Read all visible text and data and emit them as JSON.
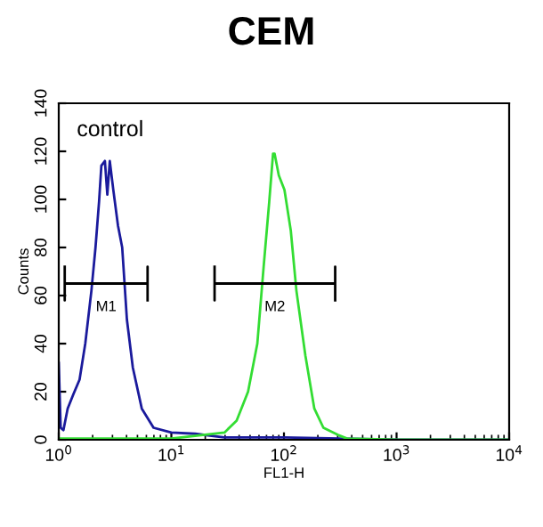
{
  "chart_data": {
    "type": "line",
    "title": "CEM",
    "xlabel": "FL1-H",
    "ylabel": "Counts",
    "log": "x",
    "grid": false,
    "marker": "none",
    "line_style": "solid",
    "xlim": [
      1,
      10000
    ],
    "xticks": [
      {
        "value": 1,
        "label": "10$^{0}$"
      },
      {
        "value": 10,
        "label": "10$^{1}$"
      },
      {
        "value": 100,
        "label": "10$^{2}$"
      },
      {
        "value": 1000,
        "label": "10$^{3}$"
      },
      {
        "value": 10000,
        "label": "10$^{4}$"
      }
    ],
    "ylim": [
      0,
      140
    ],
    "yticks": [
      0,
      20,
      40,
      60,
      80,
      100,
      120,
      140
    ],
    "series": [
      {
        "color": "#1a1a9c",
        "x": [
          1.0,
          1.04,
          1.1,
          1.2,
          1.35,
          1.53,
          1.72,
          1.95,
          2.12,
          2.28,
          2.39,
          2.57,
          2.7,
          2.84,
          3.05,
          3.36,
          3.66,
          4.03,
          4.55,
          5.46,
          6.95,
          10,
          16.3,
          29.6,
          100,
          1000,
          10000
        ],
        "values": [
          32,
          5,
          4,
          13,
          19,
          25,
          40,
          62,
          80,
          99,
          114,
          116,
          102,
          116,
          104,
          89,
          80,
          50,
          30,
          13,
          5,
          3,
          2.5,
          1,
          1,
          0,
          0
        ]
      },
      {
        "color": "#33dd33",
        "x": [
          1.0,
          10,
          29.6,
          38,
          48,
          58,
          66,
          74,
          80,
          82.6,
          90,
          101,
          115,
          129,
          155,
          186,
          224,
          302,
          363,
          1000,
          10000
        ],
        "values": [
          0.5,
          0.5,
          3,
          8,
          20,
          40,
          72,
          99,
          119,
          119,
          110,
          104,
          87,
          62,
          35,
          13,
          5,
          2,
          0.5,
          0,
          0
        ]
      },
      {
        "color": "#000000",
        "x": [
          1.13,
          1.13,
          1.13,
          6.15,
          6.15,
          6.15
        ],
        "values": [
          72,
          58,
          65,
          65,
          72,
          58
        ]
      },
      {
        "color": "#000000",
        "x": [
          24.2,
          24.2,
          24.2,
          285,
          285,
          285
        ],
        "values": [
          72,
          58,
          65,
          65,
          72,
          58
        ]
      }
    ],
    "annotations": [
      "control",
      "M1",
      "M2"
    ]
  }
}
